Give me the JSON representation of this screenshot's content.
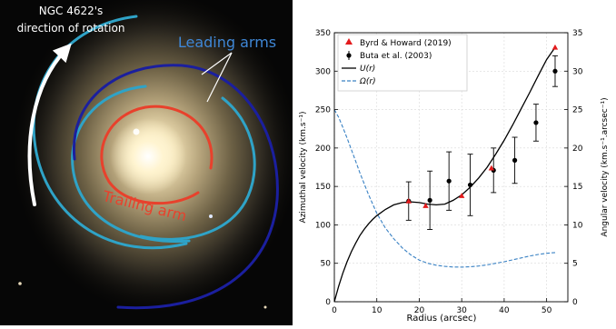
{
  "image_panel": {
    "rotation_label_line1": "NGC 4622's",
    "rotation_label_line2": "direction of rotation",
    "leading_label": "Leading arms",
    "trailing_label": "Trailing arm",
    "colors": {
      "leading_outer": "#2fa3c7",
      "leading_inner": "#1b1f9e",
      "trailing": "#e8412c",
      "arrow": "#ffffff",
      "leading_text": "#3f87d6",
      "trailing_text": "#e8412c"
    }
  },
  "chart_data": {
    "type": "line",
    "title": "",
    "xlabel": "Radius (arcsec)",
    "ylabel": "Azimuthal velocity (km.s⁻¹)",
    "ylabel_right": "Angular velocity (km.s⁻¹.arcsec⁻¹)",
    "xlim": [
      0,
      55
    ],
    "ylim": [
      0,
      350
    ],
    "ylim_right": [
      0,
      35
    ],
    "xticks": [
      0,
      10,
      20,
      30,
      40,
      50
    ],
    "yticks": [
      0,
      50,
      100,
      150,
      200,
      250,
      300,
      350
    ],
    "yticks_right": [
      0,
      5,
      10,
      15,
      20,
      25,
      30,
      35
    ],
    "grid": true,
    "legend": {
      "position": "top-left",
      "entries": [
        "Byrd & Howard (2019)",
        "Buta et al. (2003)",
        "U(r)",
        "Ω(r)"
      ]
    },
    "series": [
      {
        "name": "Byrd & Howard (2019)",
        "kind": "marker",
        "color": "#e31a1c",
        "points": [
          [
            17.5,
            131
          ],
          [
            21.5,
            125
          ],
          [
            30,
            138
          ],
          [
            37,
            174
          ],
          [
            52,
            331
          ]
        ]
      },
      {
        "name": "Buta et al. (2003)",
        "kind": "errorbar",
        "color": "#000000",
        "points": [
          {
            "x": 17.5,
            "y": 131,
            "err": 25
          },
          {
            "x": 22.5,
            "y": 132,
            "err": 38
          },
          {
            "x": 27,
            "y": 157,
            "err": 38
          },
          {
            "x": 32,
            "y": 152,
            "err": 40
          },
          {
            "x": 37.5,
            "y": 171,
            "err": 29
          },
          {
            "x": 42.5,
            "y": 184,
            "err": 30
          },
          {
            "x": 47.5,
            "y": 233,
            "err": 24
          },
          {
            "x": 52,
            "y": 300,
            "err": 20
          }
        ]
      },
      {
        "name": "U(r)",
        "kind": "line",
        "axis": "left",
        "color": "#000000",
        "points": [
          [
            0,
            0
          ],
          [
            1,
            20
          ],
          [
            2,
            37
          ],
          [
            3,
            52
          ],
          [
            4,
            65
          ],
          [
            5,
            76
          ],
          [
            6,
            86
          ],
          [
            7,
            94
          ],
          [
            8,
            101
          ],
          [
            9,
            107
          ],
          [
            10,
            112
          ],
          [
            12,
            120
          ],
          [
            14,
            126
          ],
          [
            16,
            129
          ],
          [
            18,
            130
          ],
          [
            20,
            129
          ],
          [
            22,
            127
          ],
          [
            24,
            126
          ],
          [
            26,
            127
          ],
          [
            28,
            132
          ],
          [
            30,
            139
          ],
          [
            32,
            149
          ],
          [
            34,
            161
          ],
          [
            36,
            175
          ],
          [
            38,
            192
          ],
          [
            40,
            210
          ],
          [
            42,
            230
          ],
          [
            44,
            251
          ],
          [
            46,
            272
          ],
          [
            48,
            294
          ],
          [
            50,
            315
          ],
          [
            52,
            331
          ]
        ]
      },
      {
        "name": "Ω(r)",
        "kind": "line",
        "axis": "right",
        "color": "#3a82c4",
        "points": [
          [
            0,
            25
          ],
          [
            1,
            24
          ],
          [
            2,
            22.7
          ],
          [
            3,
            21.3
          ],
          [
            4,
            19.8
          ],
          [
            5,
            18.3
          ],
          [
            6,
            16.8
          ],
          [
            8,
            14
          ],
          [
            10,
            11.5
          ],
          [
            12,
            9.6
          ],
          [
            14,
            8.2
          ],
          [
            16,
            7
          ],
          [
            18,
            6.1
          ],
          [
            20,
            5.4
          ],
          [
            22,
            5
          ],
          [
            24,
            4.75
          ],
          [
            26,
            4.6
          ],
          [
            28,
            4.52
          ],
          [
            30,
            4.5
          ],
          [
            32,
            4.55
          ],
          [
            34,
            4.65
          ],
          [
            36,
            4.8
          ],
          [
            38,
            5
          ],
          [
            40,
            5.2
          ],
          [
            42,
            5.45
          ],
          [
            44,
            5.7
          ],
          [
            46,
            5.95
          ],
          [
            48,
            6.15
          ],
          [
            50,
            6.3
          ],
          [
            52,
            6.4
          ]
        ]
      }
    ]
  }
}
